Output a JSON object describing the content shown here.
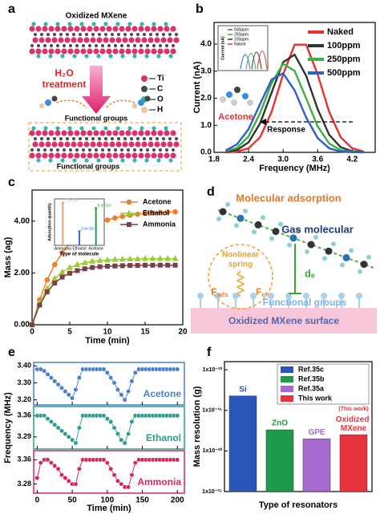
{
  "diagram_a": {
    "panel_label": "a",
    "title": "Oxidized MXene",
    "process": "H₂O",
    "process_2": "treatment",
    "legend": [
      {
        "name": "Ti",
        "color": "#d9336b"
      },
      {
        "name": "C",
        "color": "#4a4a4a"
      },
      {
        "name": "O",
        "color": "#36b3b0"
      },
      {
        "name": "H",
        "color": "#f2c2a0"
      }
    ],
    "top_label": "Functional groups",
    "bottom_label": "Functional groups"
  },
  "diagram_d": {
    "panel_label": "d",
    "title": "Molecular adsorption",
    "molecule": "Gas molecular",
    "spring": [
      "Nonlinear",
      "spring"
    ],
    "force_1": {
      "symbol": "F",
      "subscript": "ads"
    },
    "force_2": {
      "symbol": "F",
      "subscript": "el"
    },
    "distance": "dₑ",
    "groups": "Functional groups",
    "surface": "Oxidized MXene surface"
  },
  "chart_data": [
    {
      "type": "line",
      "panel_label": "b",
      "xlabel": "Frequency (MHz)",
      "ylabel": "Current (nA)",
      "x": [
        2,
        2.2,
        2.4,
        2.6,
        2.8,
        3,
        3.2,
        3.4,
        3.6,
        3.8,
        4,
        4.2,
        4.4
      ],
      "xlim": [
        1.8,
        4.6
      ],
      "xticks": [
        1.8,
        2.4,
        {
          "value": 3,
          "label": "3.0"
        },
        3.6,
        4.2
      ],
      "ylim": [
        0,
        4.8
      ],
      "yticks": [
        {
          "value": 0,
          "label": "0.0"
        },
        {
          "value": 1,
          "label": "1.0"
        },
        {
          "value": 2,
          "label": "2.0"
        },
        {
          "value": 3,
          "label": "3.0"
        },
        {
          "value": 4,
          "label": "4.0"
        }
      ],
      "series": [
        {
          "name": "Naked",
          "color": "#e8312f",
          "values": [
            0.0,
            0.03,
            0.15,
            0.56,
            1.5,
            2.88,
            3.98,
            3.98,
            2.88,
            1.5,
            0.56,
            0.15,
            0.03
          ]
        },
        {
          "name": "100ppm",
          "color": "#333333",
          "values": [
            0.02,
            0.09,
            0.37,
            1.07,
            2.21,
            3.33,
            3.61,
            2.83,
            1.6,
            0.65,
            0.19,
            0.04,
            0.01
          ]
        },
        {
          "name": "250ppm",
          "color": "#3cb043",
          "values": [
            0.04,
            0.17,
            0.59,
            1.45,
            2.56,
            3.27,
            3.01,
            2.0,
            0.96,
            0.33,
            0.08,
            0.02,
            0.0
          ]
        },
        {
          "name": "500ppm",
          "color": "#2f5ec4",
          "values": [
            0.07,
            0.3,
            0.86,
            1.79,
            2.69,
            2.92,
            2.29,
            1.29,
            0.53,
            0.15,
            0.03,
            0.01,
            0.0
          ]
        }
      ],
      "annotations": {
        "gas": "Acetone",
        "arrow": "Response"
      },
      "inset": {
        "ylabel": "Current (nA)",
        "legend": [
          {
            "name": "500ppm",
            "color": "#2f5ec4"
          },
          {
            "name": "250ppm",
            "color": "#3cb043"
          },
          {
            "name": "100ppm",
            "color": "#333333"
          },
          {
            "name": "Naked",
            "color": "#e8312f"
          }
        ]
      }
    },
    {
      "type": "line",
      "markers": true,
      "panel_label": "c",
      "xlabel": "Time (min)",
      "ylabel": "Mass (ag)",
      "x": [
        0,
        1,
        2,
        3,
        4,
        5,
        6,
        7,
        8,
        9,
        10,
        11,
        12,
        13,
        14,
        15,
        16,
        17,
        18,
        19
      ],
      "xlim": [
        0,
        20
      ],
      "xticks": [
        0,
        5,
        10,
        15,
        20
      ],
      "ylim": [
        0,
        5.2
      ],
      "yticks": [
        {
          "value": 0,
          "label": "0.00"
        },
        {
          "value": 2,
          "label": "2.00"
        },
        {
          "value": 4,
          "label": "4.00"
        }
      ],
      "series": [
        {
          "name": "Acetone",
          "color": "#f07f2a",
          "marker": "circle",
          "values": [
            0,
            0.97,
            1.73,
            2.32,
            2.78,
            3.14,
            3.42,
            3.63,
            3.8,
            3.94,
            4.04,
            4.12,
            4.18,
            4.23,
            4.27,
            4.3,
            4.32,
            4.34,
            4.35,
            4.36
          ]
        },
        {
          "name": "Ethanol",
          "color": "#9acd32",
          "marker": "triangle",
          "values": [
            0,
            0.84,
            1.4,
            1.78,
            2.03,
            2.21,
            2.32,
            2.39,
            2.45,
            2.48,
            2.5,
            2.52,
            2.53,
            2.54,
            2.54,
            2.55,
            2.55,
            2.55,
            2.55,
            2.55
          ]
        },
        {
          "name": "Ammonia",
          "color": "#7b3f4a",
          "marker": "square",
          "values": [
            0,
            0.76,
            1.27,
            1.61,
            1.84,
            1.99,
            2.09,
            2.16,
            2.21,
            2.24,
            2.26,
            2.27,
            2.28,
            2.29,
            2.29,
            2.3,
            2.3,
            2.3,
            2.3,
            2.3
          ]
        }
      ],
      "inset": {
        "type": "bar",
        "xlabel": "Type of molecule",
        "ylabel": "Adsorption quantity",
        "categories": [
          "Ammonia",
          "Ethanol",
          "Acetone"
        ],
        "values": [
          73000,
          24000,
          64000
        ],
        "value_labels": [
          "7.3×10⁴",
          "2.4×10⁴",
          "6.4×10⁴"
        ],
        "colors": [
          "#e8a080",
          "#3a6fd8",
          "#2aa04a"
        ],
        "ylim": [
          0,
          80000
        ]
      }
    },
    {
      "type": "stacked-line",
      "panel_label": "e",
      "xlabel": "Time (min)",
      "ylabel": "Frequency (MHz)",
      "x": [
        0,
        5,
        10,
        15,
        20,
        25,
        30,
        35,
        40,
        45,
        50,
        55,
        60,
        65,
        70,
        75,
        80,
        85,
        90,
        95,
        100,
        105,
        110,
        115,
        120,
        125,
        130,
        135,
        140,
        145,
        150,
        155,
        160,
        165,
        170,
        175,
        180,
        185,
        190,
        195,
        200
      ],
      "xlim": [
        -5,
        210
      ],
      "xticks": [
        0,
        50,
        100,
        150,
        200
      ],
      "panels": [
        {
          "name": "Acetone",
          "color": "#4a7fd0",
          "ylim": [
            3.17,
            3.42
          ],
          "yticks": [
            {
              "value": 3.4,
              "label": "3.40"
            },
            {
              "value": 3.3,
              "label": "3.30"
            },
            {
              "value": 3.2,
              "label": "3.20"
            }
          ],
          "values": [
            3.38,
            3.38,
            3.37,
            3.35,
            3.33,
            3.31,
            3.29,
            3.27,
            3.25,
            3.23,
            3.21,
            3.26,
            3.33,
            3.38,
            3.38,
            3.38,
            3.38,
            3.38,
            3.38,
            3.38,
            3.36,
            3.33,
            3.3,
            3.26,
            3.23,
            3.2,
            3.25,
            3.31,
            3.36,
            3.38,
            3.38,
            3.38,
            3.38,
            3.38,
            3.38,
            3.38,
            3.38,
            3.38,
            3.38,
            3.38,
            3.38
          ]
        },
        {
          "name": "Ethanol",
          "color": "#2a9d8f",
          "ylim": [
            3.25,
            3.39
          ],
          "yticks": [
            3.36,
            3.29
          ],
          "values": [
            3.36,
            3.36,
            3.36,
            3.35,
            3.34,
            3.33,
            3.32,
            3.31,
            3.3,
            3.29,
            3.28,
            3.27,
            3.32,
            3.36,
            3.36,
            3.36,
            3.36,
            3.36,
            3.36,
            3.36,
            3.35,
            3.34,
            3.32,
            3.3,
            3.28,
            3.27,
            3.3,
            3.34,
            3.36,
            3.36,
            3.36,
            3.36,
            3.36,
            3.36,
            3.36,
            3.36,
            3.36,
            3.36,
            3.36,
            3.36,
            3.36
          ]
        },
        {
          "name": "Ammonia",
          "color": "#d6285a",
          "ylim": [
            3.25,
            3.39
          ],
          "yticks": [
            3.36,
            3.28
          ],
          "values": [
            3.3,
            3.35,
            3.36,
            3.36,
            3.35,
            3.34,
            3.33,
            3.31,
            3.3,
            3.29,
            3.28,
            3.28,
            3.33,
            3.36,
            3.36,
            3.36,
            3.36,
            3.36,
            3.36,
            3.36,
            3.35,
            3.33,
            3.31,
            3.29,
            3.28,
            3.27,
            3.27,
            3.31,
            3.35,
            3.36,
            3.36,
            3.36,
            3.36,
            3.36,
            3.36,
            3.36,
            3.36,
            3.36,
            3.36,
            3.36,
            3.36
          ]
        }
      ]
    },
    {
      "type": "bar",
      "log": true,
      "panel_label": "f",
      "xlabel": "Type of resonators",
      "ylabel": "Mass resolution (g)",
      "categories": [
        "Si",
        "ZnO",
        "GPE",
        "Oxidized MXene"
      ],
      "values": [
        6e-14,
        4e-18,
        3e-19,
        1e-18
      ],
      "colors": [
        "#2b55b8",
        "#1f9a4a",
        "#a86ad0",
        "#e8333f"
      ],
      "legend": [
        "Ref.35c",
        "Ref.35b",
        "Ref.35a",
        "This work"
      ],
      "annotation": "(This work)",
      "ylim": [
        1e-25,
        1e-09
      ],
      "yticks": [
        {
          "value": 1e-10,
          "label": "1x10⁻¹⁰"
        },
        {
          "value": 1e-15,
          "label": "1x10⁻¹⁵"
        },
        {
          "value": 1e-20,
          "label": "1x10⁻²⁰"
        },
        {
          "value": 1e-25,
          "label": "1x10⁻²⁵"
        }
      ]
    }
  ]
}
